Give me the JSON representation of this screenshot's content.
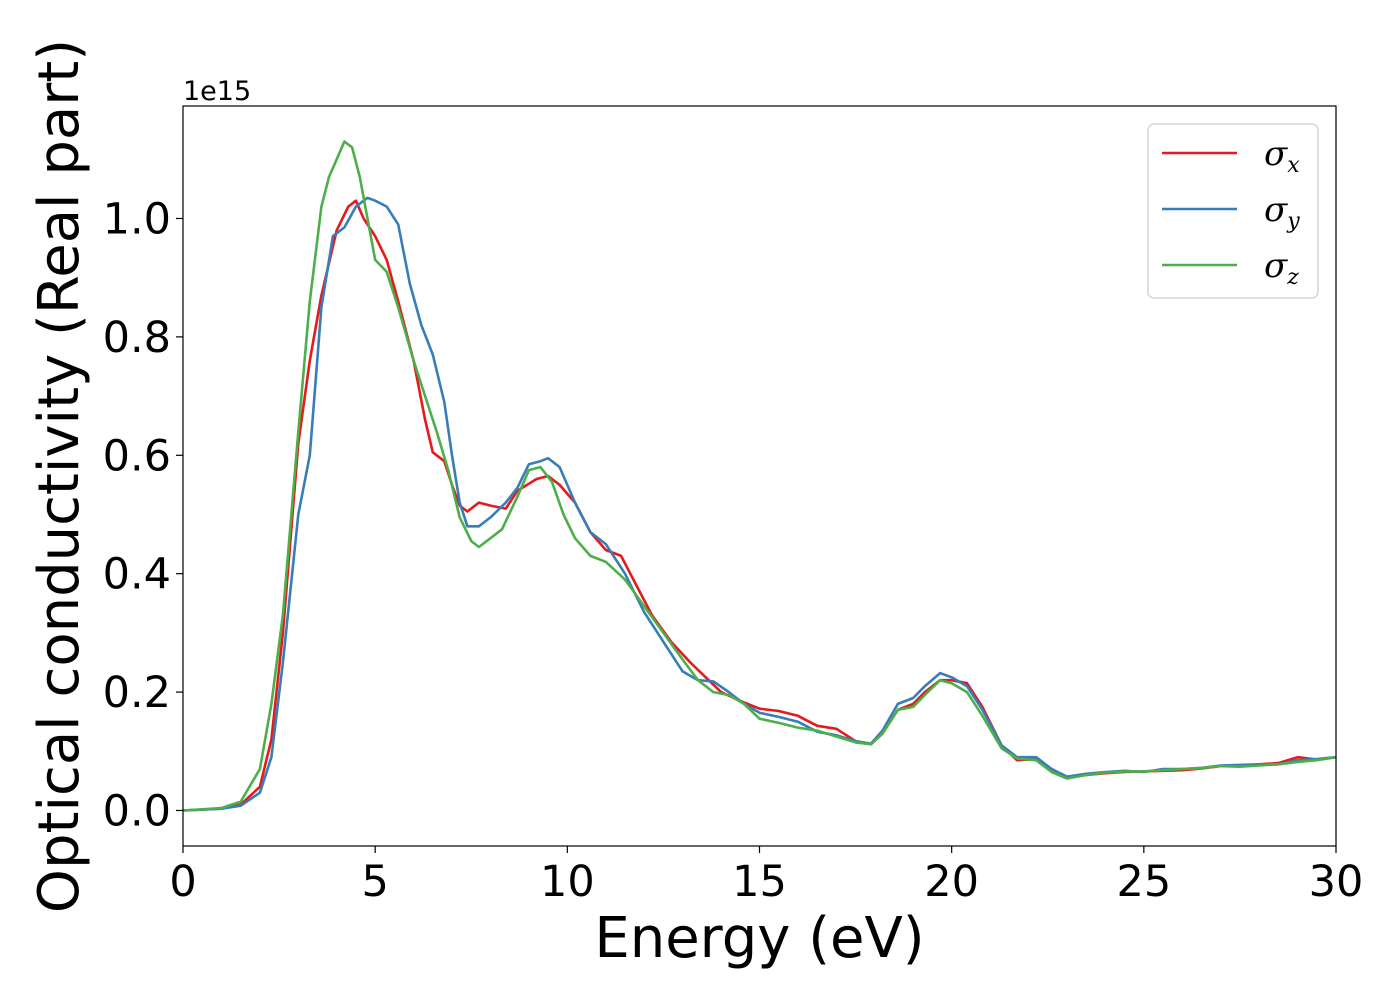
{
  "chart_data": {
    "type": "line",
    "title": "",
    "xlabel": "Energy (eV)",
    "ylabel": "Optical conductivity (Real part)",
    "y_offset_label": "1e15",
    "xlim": [
      0,
      30
    ],
    "ylim": [
      -0.06,
      1.19
    ],
    "x_ticks": [
      0,
      5,
      10,
      15,
      20,
      25,
      30
    ],
    "x_tick_labels": [
      "0",
      "5",
      "10",
      "15",
      "20",
      "25",
      "30"
    ],
    "y_ticks": [
      0.0,
      0.2,
      0.4,
      0.6,
      0.8,
      1.0
    ],
    "y_tick_labels": [
      "0.0",
      "0.2",
      "0.4",
      "0.6",
      "0.8",
      "1.0"
    ],
    "grid": false,
    "legend_position": "top-right",
    "series": [
      {
        "name": "σ_x",
        "legend_symbol": "σ",
        "legend_sub": "x",
        "color": "#e41a1c",
        "points": [
          [
            0,
            0
          ],
          [
            1,
            0.003
          ],
          [
            1.5,
            0.01
          ],
          [
            2,
            0.04
          ],
          [
            2.3,
            0.12
          ],
          [
            2.6,
            0.3
          ],
          [
            3.0,
            0.62
          ],
          [
            3.3,
            0.76
          ],
          [
            3.6,
            0.87
          ],
          [
            4.0,
            0.98
          ],
          [
            4.3,
            1.02
          ],
          [
            4.5,
            1.03
          ],
          [
            4.7,
            1.0
          ],
          [
            5.0,
            0.97
          ],
          [
            5.3,
            0.93
          ],
          [
            5.6,
            0.86
          ],
          [
            6.0,
            0.76
          ],
          [
            6.3,
            0.66
          ],
          [
            6.5,
            0.605
          ],
          [
            6.8,
            0.59
          ],
          [
            7.0,
            0.55
          ],
          [
            7.2,
            0.515
          ],
          [
            7.4,
            0.505
          ],
          [
            7.7,
            0.52
          ],
          [
            8.0,
            0.515
          ],
          [
            8.4,
            0.51
          ],
          [
            8.7,
            0.54
          ],
          [
            9.2,
            0.56
          ],
          [
            9.5,
            0.565
          ],
          [
            9.8,
            0.55
          ],
          [
            10.2,
            0.52
          ],
          [
            10.6,
            0.47
          ],
          [
            11.0,
            0.44
          ],
          [
            11.4,
            0.43
          ],
          [
            11.8,
            0.38
          ],
          [
            12.2,
            0.33
          ],
          [
            12.7,
            0.285
          ],
          [
            13.2,
            0.25
          ],
          [
            13.6,
            0.225
          ],
          [
            14.0,
            0.2
          ],
          [
            14.5,
            0.185
          ],
          [
            15.0,
            0.172
          ],
          [
            15.5,
            0.168
          ],
          [
            16.0,
            0.16
          ],
          [
            16.5,
            0.143
          ],
          [
            17.0,
            0.138
          ],
          [
            17.5,
            0.117
          ],
          [
            17.9,
            0.112
          ],
          [
            18.2,
            0.13
          ],
          [
            18.6,
            0.17
          ],
          [
            19.0,
            0.18
          ],
          [
            19.3,
            0.2
          ],
          [
            19.7,
            0.22
          ],
          [
            20.0,
            0.22
          ],
          [
            20.4,
            0.215
          ],
          [
            20.8,
            0.175
          ],
          [
            21.3,
            0.11
          ],
          [
            21.7,
            0.085
          ],
          [
            22.2,
            0.087
          ],
          [
            22.6,
            0.07
          ],
          [
            23.0,
            0.056
          ],
          [
            23.5,
            0.06
          ],
          [
            24.0,
            0.063
          ],
          [
            24.5,
            0.065
          ],
          [
            25.0,
            0.066
          ],
          [
            25.5,
            0.067
          ],
          [
            26.0,
            0.068
          ],
          [
            26.5,
            0.071
          ],
          [
            27.0,
            0.075
          ],
          [
            27.5,
            0.075
          ],
          [
            28.0,
            0.078
          ],
          [
            28.5,
            0.08
          ],
          [
            29.0,
            0.09
          ],
          [
            29.5,
            0.086
          ],
          [
            30,
            0.09
          ]
        ]
      },
      {
        "name": "σ_y",
        "legend_symbol": "σ",
        "legend_sub": "y",
        "color": "#377eb8",
        "points": [
          [
            0,
            0
          ],
          [
            1,
            0.003
          ],
          [
            1.5,
            0.008
          ],
          [
            2,
            0.03
          ],
          [
            2.3,
            0.09
          ],
          [
            2.6,
            0.25
          ],
          [
            3.0,
            0.5
          ],
          [
            3.3,
            0.6
          ],
          [
            3.6,
            0.85
          ],
          [
            3.9,
            0.97
          ],
          [
            4.2,
            0.985
          ],
          [
            4.5,
            1.02
          ],
          [
            4.8,
            1.035
          ],
          [
            5.0,
            1.03
          ],
          [
            5.3,
            1.02
          ],
          [
            5.6,
            0.99
          ],
          [
            5.9,
            0.89
          ],
          [
            6.2,
            0.82
          ],
          [
            6.5,
            0.77
          ],
          [
            6.8,
            0.69
          ],
          [
            7.0,
            0.6
          ],
          [
            7.2,
            0.52
          ],
          [
            7.4,
            0.48
          ],
          [
            7.7,
            0.48
          ],
          [
            8.0,
            0.495
          ],
          [
            8.4,
            0.52
          ],
          [
            8.7,
            0.545
          ],
          [
            9.0,
            0.585
          ],
          [
            9.3,
            0.59
          ],
          [
            9.5,
            0.595
          ],
          [
            9.8,
            0.58
          ],
          [
            10.2,
            0.52
          ],
          [
            10.6,
            0.47
          ],
          [
            11.0,
            0.45
          ],
          [
            11.5,
            0.4
          ],
          [
            12.0,
            0.335
          ],
          [
            12.5,
            0.285
          ],
          [
            13.0,
            0.235
          ],
          [
            13.4,
            0.22
          ],
          [
            13.8,
            0.218
          ],
          [
            14.2,
            0.2
          ],
          [
            14.6,
            0.18
          ],
          [
            15.0,
            0.165
          ],
          [
            15.5,
            0.158
          ],
          [
            16.0,
            0.15
          ],
          [
            16.5,
            0.133
          ],
          [
            17.0,
            0.127
          ],
          [
            17.5,
            0.117
          ],
          [
            17.9,
            0.113
          ],
          [
            18.2,
            0.135
          ],
          [
            18.6,
            0.18
          ],
          [
            19.0,
            0.19
          ],
          [
            19.3,
            0.21
          ],
          [
            19.7,
            0.232
          ],
          [
            20.0,
            0.225
          ],
          [
            20.4,
            0.21
          ],
          [
            20.8,
            0.17
          ],
          [
            21.3,
            0.11
          ],
          [
            21.7,
            0.09
          ],
          [
            22.2,
            0.09
          ],
          [
            22.6,
            0.07
          ],
          [
            23.0,
            0.057
          ],
          [
            23.5,
            0.062
          ],
          [
            24.0,
            0.065
          ],
          [
            24.5,
            0.067
          ],
          [
            25.0,
            0.065
          ],
          [
            25.5,
            0.07
          ],
          [
            26.0,
            0.07
          ],
          [
            26.5,
            0.072
          ],
          [
            27.0,
            0.076
          ],
          [
            27.5,
            0.077
          ],
          [
            28.0,
            0.078
          ],
          [
            28.5,
            0.078
          ],
          [
            29.0,
            0.085
          ],
          [
            29.5,
            0.087
          ],
          [
            30,
            0.09
          ]
        ]
      },
      {
        "name": "σ_z",
        "legend_symbol": "σ",
        "legend_sub": "z",
        "color": "#4daf4a",
        "points": [
          [
            0,
            0
          ],
          [
            1,
            0.004
          ],
          [
            1.5,
            0.015
          ],
          [
            2,
            0.07
          ],
          [
            2.3,
            0.18
          ],
          [
            2.6,
            0.33
          ],
          [
            3.0,
            0.64
          ],
          [
            3.3,
            0.86
          ],
          [
            3.6,
            1.02
          ],
          [
            3.8,
            1.07
          ],
          [
            4.0,
            1.1
          ],
          [
            4.2,
            1.13
          ],
          [
            4.4,
            1.12
          ],
          [
            4.6,
            1.07
          ],
          [
            4.8,
            1.0
          ],
          [
            5.0,
            0.93
          ],
          [
            5.3,
            0.91
          ],
          [
            5.6,
            0.85
          ],
          [
            6.0,
            0.76
          ],
          [
            6.3,
            0.7
          ],
          [
            6.6,
            0.64
          ],
          [
            6.9,
            0.575
          ],
          [
            7.2,
            0.495
          ],
          [
            7.5,
            0.455
          ],
          [
            7.7,
            0.445
          ],
          [
            8.0,
            0.46
          ],
          [
            8.3,
            0.475
          ],
          [
            8.7,
            0.53
          ],
          [
            9.0,
            0.575
          ],
          [
            9.3,
            0.58
          ],
          [
            9.6,
            0.555
          ],
          [
            9.9,
            0.5
          ],
          [
            10.2,
            0.46
          ],
          [
            10.6,
            0.43
          ],
          [
            11.0,
            0.42
          ],
          [
            11.5,
            0.39
          ],
          [
            12.0,
            0.345
          ],
          [
            12.5,
            0.3
          ],
          [
            13.0,
            0.255
          ],
          [
            13.4,
            0.22
          ],
          [
            13.8,
            0.2
          ],
          [
            14.2,
            0.195
          ],
          [
            14.6,
            0.18
          ],
          [
            15.0,
            0.155
          ],
          [
            15.5,
            0.148
          ],
          [
            16.0,
            0.14
          ],
          [
            16.5,
            0.135
          ],
          [
            17.0,
            0.125
          ],
          [
            17.5,
            0.115
          ],
          [
            17.9,
            0.112
          ],
          [
            18.2,
            0.13
          ],
          [
            18.6,
            0.17
          ],
          [
            19.0,
            0.175
          ],
          [
            19.3,
            0.195
          ],
          [
            19.7,
            0.22
          ],
          [
            20.0,
            0.215
          ],
          [
            20.4,
            0.2
          ],
          [
            20.8,
            0.16
          ],
          [
            21.3,
            0.105
          ],
          [
            21.7,
            0.088
          ],
          [
            22.2,
            0.085
          ],
          [
            22.6,
            0.065
          ],
          [
            23.0,
            0.054
          ],
          [
            23.5,
            0.06
          ],
          [
            24.0,
            0.064
          ],
          [
            24.5,
            0.066
          ],
          [
            25.0,
            0.066
          ],
          [
            25.5,
            0.068
          ],
          [
            26.0,
            0.07
          ],
          [
            26.5,
            0.072
          ],
          [
            27.0,
            0.075
          ],
          [
            27.5,
            0.074
          ],
          [
            28.0,
            0.076
          ],
          [
            28.5,
            0.078
          ],
          [
            29.0,
            0.082
          ],
          [
            29.5,
            0.085
          ],
          [
            30,
            0.09
          ]
        ]
      }
    ]
  }
}
